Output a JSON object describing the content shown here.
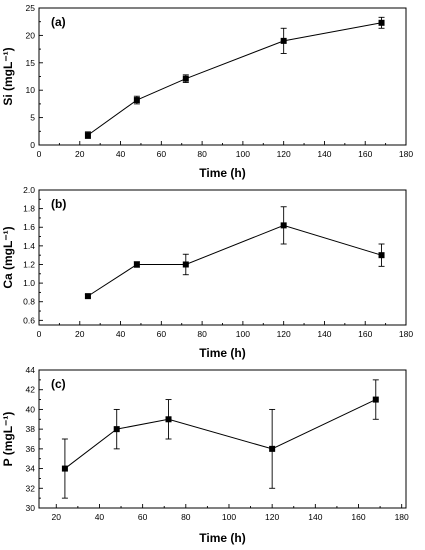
{
  "chart_data": [
    {
      "type": "line",
      "panel_label": "(a)",
      "xlabel": "Time (h)",
      "ylabel": "Si (mgL⁻¹)",
      "xlim": [
        0,
        180
      ],
      "ylim": [
        0,
        25
      ],
      "xticks": [
        0,
        20,
        40,
        60,
        80,
        100,
        120,
        140,
        160,
        180
      ],
      "yticks": [
        0,
        5,
        10,
        15,
        20,
        25
      ],
      "ytick_labels": [
        "0",
        "5",
        "10",
        "15",
        "20",
        "25"
      ],
      "grid": false,
      "marker": "square",
      "x": [
        24,
        48,
        72,
        120,
        168
      ],
      "values": [
        1.8,
        8.2,
        12.1,
        19.0,
        22.3
      ],
      "errors": [
        0.6,
        0.7,
        0.7,
        2.3,
        1.0
      ]
    },
    {
      "type": "line",
      "panel_label": "(b)",
      "xlabel": "Time (h)",
      "ylabel": "Ca (mgL⁻¹)",
      "xlim": [
        0,
        180
      ],
      "ylim": [
        0.55,
        2.0
      ],
      "xticks": [
        0,
        20,
        40,
        60,
        80,
        100,
        120,
        140,
        160,
        180
      ],
      "yticks": [
        0.6,
        0.8,
        1.0,
        1.2,
        1.4,
        1.6,
        1.8,
        2.0
      ],
      "ytick_labels": [
        "0.6",
        "0.8",
        "1.0",
        "1.2",
        "1.4",
        "1.6",
        "1.8",
        "2.0"
      ],
      "grid": false,
      "marker": "square",
      "x": [
        24,
        48,
        72,
        120,
        168
      ],
      "values": [
        0.86,
        1.2,
        1.2,
        1.62,
        1.3
      ],
      "errors": [
        0.02,
        0.03,
        0.11,
        0.2,
        0.12
      ]
    },
    {
      "type": "line",
      "panel_label": "(c)",
      "xlabel": "Time (h)",
      "ylabel": "P (mgL⁻¹)",
      "xlim": [
        12,
        182
      ],
      "ylim": [
        30,
        44
      ],
      "xticks": [
        20,
        40,
        60,
        80,
        100,
        120,
        140,
        160,
        180
      ],
      "yticks": [
        30,
        32,
        34,
        36,
        38,
        40,
        42,
        44
      ],
      "ytick_labels": [
        "30",
        "32",
        "34",
        "36",
        "38",
        "40",
        "42",
        "44"
      ],
      "grid": false,
      "marker": "square",
      "x": [
        24,
        48,
        72,
        120,
        168
      ],
      "values": [
        34,
        38,
        39,
        36,
        41
      ],
      "errors": [
        3,
        2,
        2,
        4,
        2
      ]
    }
  ]
}
